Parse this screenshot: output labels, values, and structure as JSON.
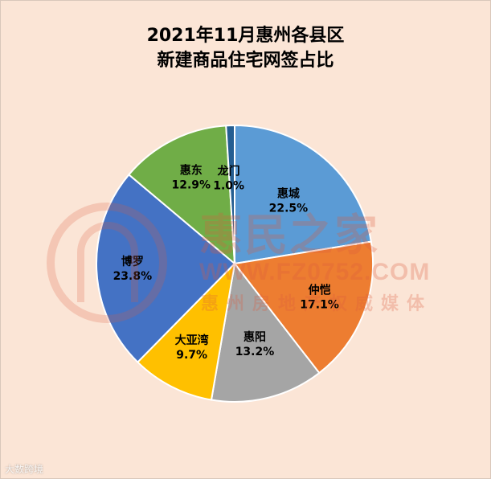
{
  "chart_data": {
    "type": "pie",
    "title_lines": [
      "2021年11月惠州各县区",
      "新建商品住宅网签占比"
    ],
    "slices": [
      {
        "label": "惠城",
        "value": 22.5,
        "value_text": "22.5%",
        "color": "#5b9bd5"
      },
      {
        "label": "仲恺",
        "value": 17.1,
        "value_text": "17.1%",
        "color": "#ed7d31"
      },
      {
        "label": "惠阳",
        "value": 13.2,
        "value_text": "13.2%",
        "color": "#a5a5a5"
      },
      {
        "label": "大亚湾",
        "value": 9.7,
        "value_text": "9.7%",
        "color": "#ffc000"
      },
      {
        "label": "博罗",
        "value": 23.8,
        "value_text": "23.8%",
        "color": "#4472c4"
      },
      {
        "label": "惠东",
        "value": 12.9,
        "value_text": "12.9%",
        "color": "#70ad47"
      },
      {
        "label": "龙门",
        "value": 1.0,
        "value_text": "1.0%",
        "color": "#255e91"
      }
    ],
    "legend": "none"
  },
  "watermark": {
    "name": "惠民之家",
    "url": "WWW.FZ0752.COM",
    "tagline": "惠州房地产权威媒体"
  },
  "source": "大数跨境",
  "colors": {
    "background": "#fbe5d6"
  }
}
